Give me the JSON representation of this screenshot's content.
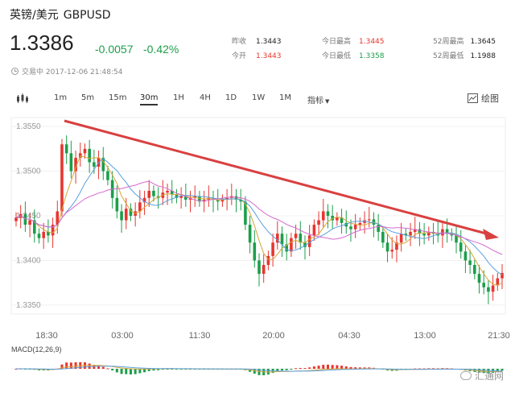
{
  "header": {
    "name": "英镑/美元",
    "code": "GBPUSD"
  },
  "quote": {
    "price": "1.3386",
    "change": "-0.0057",
    "change_pct": "-0.42%"
  },
  "stats": [
    {
      "label": "昨收",
      "value": "1.3443",
      "color": "normal"
    },
    {
      "label": "今开",
      "value": "1.3443",
      "color": "red"
    },
    {
      "label": "今日最高",
      "value": "1.3445",
      "color": "red"
    },
    {
      "label": "今日最低",
      "value": "1.3358",
      "color": "green"
    },
    {
      "label": "52周最高",
      "value": "1.3645",
      "color": "normal"
    },
    {
      "label": "52周最低",
      "value": "1.1988",
      "color": "normal"
    }
  ],
  "status": {
    "icon": "clock-icon",
    "text": "交易中 2017-12-06 21:48:54"
  },
  "toolbar": {
    "chart_icon": "candlestick-icon",
    "periods": [
      "1m",
      "5m",
      "15m",
      "30m",
      "1H",
      "4H",
      "1D",
      "1W",
      "1M"
    ],
    "active_period": "30m",
    "indicator_label": "指标",
    "draw_label": "绘图"
  },
  "colors": {
    "up": "#e8352f",
    "down": "#1c9e4b",
    "trend_arrow": "#d94040"
  },
  "watermark": "汇通网",
  "chart_data": {
    "type": "candlestick",
    "y_ticks": [
      "1.3550",
      "1.3500",
      "1.3450",
      "1.3400",
      "1.3350"
    ],
    "x_ticks": [
      "18:30",
      "03:00",
      "11:30",
      "20:00",
      "04:30",
      "13:00",
      "21:30"
    ],
    "ylim": [
      1.334,
      1.356
    ],
    "indicator_label": "MACD(12,26,9)",
    "close_series": [
      1.3448,
      1.3452,
      1.344,
      1.3445,
      1.343,
      1.3425,
      1.3432,
      1.3428,
      1.344,
      1.3455,
      1.353,
      1.352,
      1.35,
      1.3515,
      1.352,
      1.3525,
      1.351,
      1.3505,
      1.3515,
      1.35,
      1.349,
      1.347,
      1.3455,
      1.3445,
      1.3458,
      1.345,
      1.3455,
      1.3465,
      1.347,
      1.3478,
      1.3472,
      1.347,
      1.3476,
      1.3478,
      1.3474,
      1.347,
      1.3472,
      1.3468,
      1.347,
      1.3472,
      1.3466,
      1.3468,
      1.347,
      1.3468,
      1.3466,
      1.3468,
      1.347,
      1.3472,
      1.3468,
      1.3466,
      1.344,
      1.342,
      1.34,
      1.3385,
      1.3395,
      1.3405,
      1.342,
      1.343,
      1.3418,
      1.341,
      1.3425,
      1.343,
      1.342,
      1.3415,
      1.3428,
      1.344,
      1.3445,
      1.3455,
      1.345,
      1.3445,
      1.3448,
      1.3442,
      1.3438,
      1.3435,
      1.344,
      1.3442,
      1.3445,
      1.3446,
      1.344,
      1.3432,
      1.342,
      1.341,
      1.3412,
      1.342,
      1.343,
      1.3428,
      1.3432,
      1.3435,
      1.343,
      1.3428,
      1.3432,
      1.343,
      1.3428,
      1.3435,
      1.343,
      1.3428,
      1.342,
      1.341,
      1.34,
      1.3395,
      1.3385,
      1.3375,
      1.337,
      1.3365,
      1.3372,
      1.338,
      1.3386
    ],
    "ma_series": [
      {
        "name": "ma1",
        "color": "#d9a637"
      },
      {
        "name": "ma2",
        "color": "#5aa0e0"
      },
      {
        "name": "ma3",
        "color": "#d46ad0"
      }
    ]
  }
}
